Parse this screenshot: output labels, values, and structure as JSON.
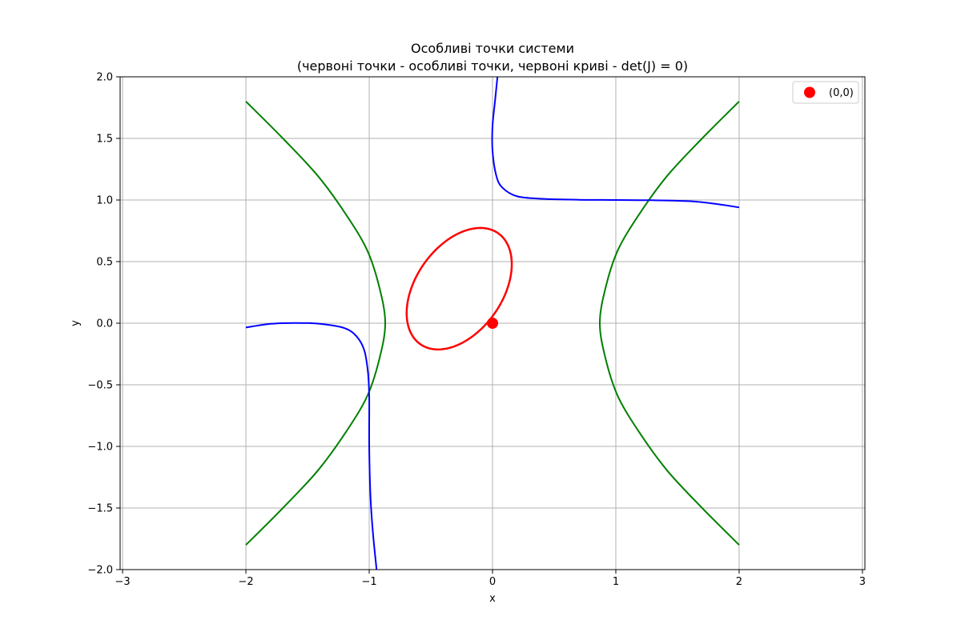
{
  "chart_data": {
    "type": "line",
    "title": "Особливі точки системи",
    "subtitle": "(червоні точки - особливі точки, червоні криві - det(J) = 0)",
    "xlabel": "x",
    "ylabel": "y",
    "xlim": [
      -3.02,
      3.02
    ],
    "ylim": [
      -2.0,
      2.0
    ],
    "xticks": [
      -3,
      -2,
      -1,
      0,
      1,
      2,
      3
    ],
    "xtick_labels": [
      "−3",
      "−2",
      "−1",
      "0",
      "1",
      "2",
      "3"
    ],
    "yticks": [
      -2.0,
      -1.5,
      -1.0,
      -0.5,
      0.0,
      0.5,
      1.0,
      1.5,
      2.0
    ],
    "ytick_labels": [
      "−2.0",
      "−1.5",
      "−1.0",
      "−0.5",
      "0.0",
      "0.5",
      "1.0",
      "1.5",
      "2.0"
    ],
    "grid": true,
    "legend_position": "top-right",
    "colors": {
      "green": "#008000",
      "blue": "#0000ff",
      "red": "#ff0000",
      "grid": "#b0b0b0"
    },
    "series": [
      {
        "kind": "line",
        "color": "#008000",
        "points": [
          [
            -2.0,
            1.8
          ],
          [
            -1.7,
            1.5
          ],
          [
            -1.42,
            1.2
          ],
          [
            -1.2,
            0.9
          ],
          [
            -1.02,
            0.6
          ],
          [
            -0.92,
            0.3
          ],
          [
            -0.87,
            0.0
          ],
          [
            -0.92,
            -0.3
          ],
          [
            -1.02,
            -0.6
          ],
          [
            -1.2,
            -0.9
          ],
          [
            -1.42,
            -1.2
          ],
          [
            -1.7,
            -1.5
          ],
          [
            -2.0,
            -1.8
          ]
        ]
      },
      {
        "kind": "line",
        "color": "#008000",
        "points": [
          [
            2.0,
            1.8
          ],
          [
            1.7,
            1.5
          ],
          [
            1.42,
            1.2
          ],
          [
            1.2,
            0.9
          ],
          [
            1.02,
            0.6
          ],
          [
            0.92,
            0.3
          ],
          [
            0.87,
            0.0
          ],
          [
            0.92,
            -0.3
          ],
          [
            1.02,
            -0.6
          ],
          [
            1.2,
            -0.9
          ],
          [
            1.42,
            -1.2
          ],
          [
            1.7,
            -1.5
          ],
          [
            2.0,
            -1.8
          ]
        ]
      },
      {
        "kind": "line",
        "color": "#0000ff",
        "points": [
          [
            0.04,
            2.0
          ],
          [
            0.02,
            1.8
          ],
          [
            0.0,
            1.6
          ],
          [
            0.0,
            1.4
          ],
          [
            0.03,
            1.2
          ],
          [
            0.08,
            1.1
          ],
          [
            0.2,
            1.03
          ],
          [
            0.4,
            1.01
          ],
          [
            0.7,
            1.002
          ],
          [
            1.0,
            1.0
          ],
          [
            1.3,
            0.998
          ],
          [
            1.6,
            0.99
          ],
          [
            1.8,
            0.97
          ],
          [
            2.0,
            0.94
          ]
        ]
      },
      {
        "kind": "line",
        "color": "#0000ff",
        "points": [
          [
            -2.0,
            -0.035
          ],
          [
            -1.8,
            -0.005
          ],
          [
            -1.6,
            0.002
          ],
          [
            -1.4,
            -0.005
          ],
          [
            -1.2,
            -0.04
          ],
          [
            -1.1,
            -0.11
          ],
          [
            -1.04,
            -0.22
          ],
          [
            -1.01,
            -0.4
          ],
          [
            -1.0,
            -0.6
          ],
          [
            -1.0,
            -1.0
          ],
          [
            -0.99,
            -1.4
          ],
          [
            -0.97,
            -1.7
          ],
          [
            -0.94,
            -2.0
          ]
        ]
      },
      {
        "kind": "ellipse",
        "color": "#ff0000",
        "center": [
          -0.27,
          0.28
        ],
        "semi_axes": [
          0.55,
          0.35
        ],
        "rotation_deg": 55
      },
      {
        "kind": "scatter",
        "name": "(0,0)",
        "color": "#ff0000",
        "points": [
          [
            0.0,
            0.0
          ]
        ]
      }
    ]
  }
}
